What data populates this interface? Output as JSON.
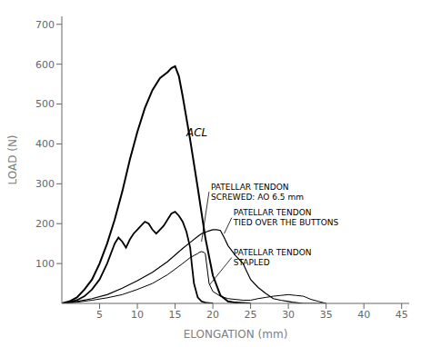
{
  "chart_data": {
    "type": "line",
    "title": "",
    "xlabel": "ELONGATION (mm)",
    "ylabel": "LOAD (N)",
    "xlim": [
      0,
      46
    ],
    "ylim": [
      0,
      720
    ],
    "xticks": [
      5,
      10,
      15,
      20,
      25,
      30,
      35,
      40,
      45
    ],
    "yticks": [
      100,
      200,
      300,
      400,
      500,
      600,
      700
    ],
    "grid": false,
    "series": [
      {
        "color": "#000000",
        "x": [
          0,
          1,
          2,
          3,
          4,
          5,
          6,
          7,
          8,
          9,
          10,
          11,
          12,
          13,
          14,
          14.5,
          15,
          15.5,
          16,
          17,
          18,
          19,
          20,
          21,
          22,
          23,
          24,
          25
        ],
        "values": [
          0,
          5,
          15,
          35,
          60,
          100,
          150,
          210,
          280,
          360,
          430,
          490,
          535,
          565,
          580,
          590,
          595,
          570,
          520,
          410,
          290,
          165,
          70,
          20,
          5,
          2,
          1,
          0
        ]
      },
      {
        "color": "#000000",
        "x": [
          0,
          1,
          2,
          3,
          4,
          5,
          6,
          7,
          7.5,
          8,
          8.5,
          9,
          9.5,
          10,
          10.5,
          11,
          11.5,
          12,
          12.5,
          13,
          13.5,
          14,
          14.5,
          15,
          15.5,
          16,
          16.5,
          17,
          17.2,
          17.5,
          18,
          18.5,
          19,
          19.5,
          20
        ],
        "values": [
          0,
          3,
          8,
          18,
          35,
          60,
          100,
          150,
          165,
          155,
          140,
          160,
          175,
          185,
          195,
          205,
          200,
          185,
          175,
          185,
          195,
          210,
          225,
          230,
          220,
          205,
          180,
          140,
          100,
          50,
          15,
          5,
          2,
          1,
          0
        ]
      },
      {
        "color": "#000000",
        "x": [
          0,
          2,
          4,
          6,
          8,
          10,
          12,
          14,
          16,
          17,
          18,
          18.5,
          19,
          19.2,
          19.5,
          20,
          20.5,
          21,
          21.5,
          22,
          23,
          24,
          24.5,
          25,
          26,
          27,
          28,
          29,
          30,
          30.5,
          31,
          31.5,
          32,
          33,
          34,
          35
        ],
        "values": [
          0,
          5,
          12,
          22,
          38,
          57,
          78,
          105,
          138,
          153,
          168,
          175,
          178,
          180,
          182,
          185,
          185,
          183,
          165,
          145,
          120,
          100,
          80,
          60,
          40,
          25,
          12,
          8,
          5,
          3,
          2,
          1,
          0,
          0,
          0,
          0
        ]
      },
      {
        "color": "#000000",
        "x": [
          0,
          2,
          4,
          6,
          8,
          10,
          12,
          14,
          16,
          17,
          17.5,
          18,
          18.2,
          18.5,
          18.8,
          19,
          19.5,
          20,
          21,
          22,
          23,
          24,
          25,
          26,
          27,
          28,
          29,
          30,
          31,
          32,
          33,
          34,
          35
        ],
        "values": [
          0,
          3,
          8,
          14,
          22,
          35,
          50,
          72,
          100,
          115,
          120,
          125,
          128,
          130,
          128,
          125,
          50,
          30,
          18,
          12,
          10,
          8,
          8,
          12,
          15,
          18,
          20,
          22,
          20,
          18,
          10,
          5,
          0
        ]
      }
    ],
    "annotations": [
      {
        "text": "ACL",
        "x": 16.5,
        "y": 420
      },
      {
        "text": "PATELLAR TENDON\nSCREWED: AO 6.5 mm",
        "x": 19.5,
        "y": 280,
        "arrow_x": 18.5,
        "arrow_y": 155
      },
      {
        "text": "PATELLAR TENDON\nTIED OVER THE BUTTONS",
        "x": 22.5,
        "y": 215,
        "arrow_x": 21.5,
        "arrow_y": 175
      },
      {
        "text": "PATELLAR TENDON\nSTAPLED",
        "x": 22.5,
        "y": 115,
        "arrow_x": 19.5,
        "arrow_y": 45
      }
    ]
  }
}
